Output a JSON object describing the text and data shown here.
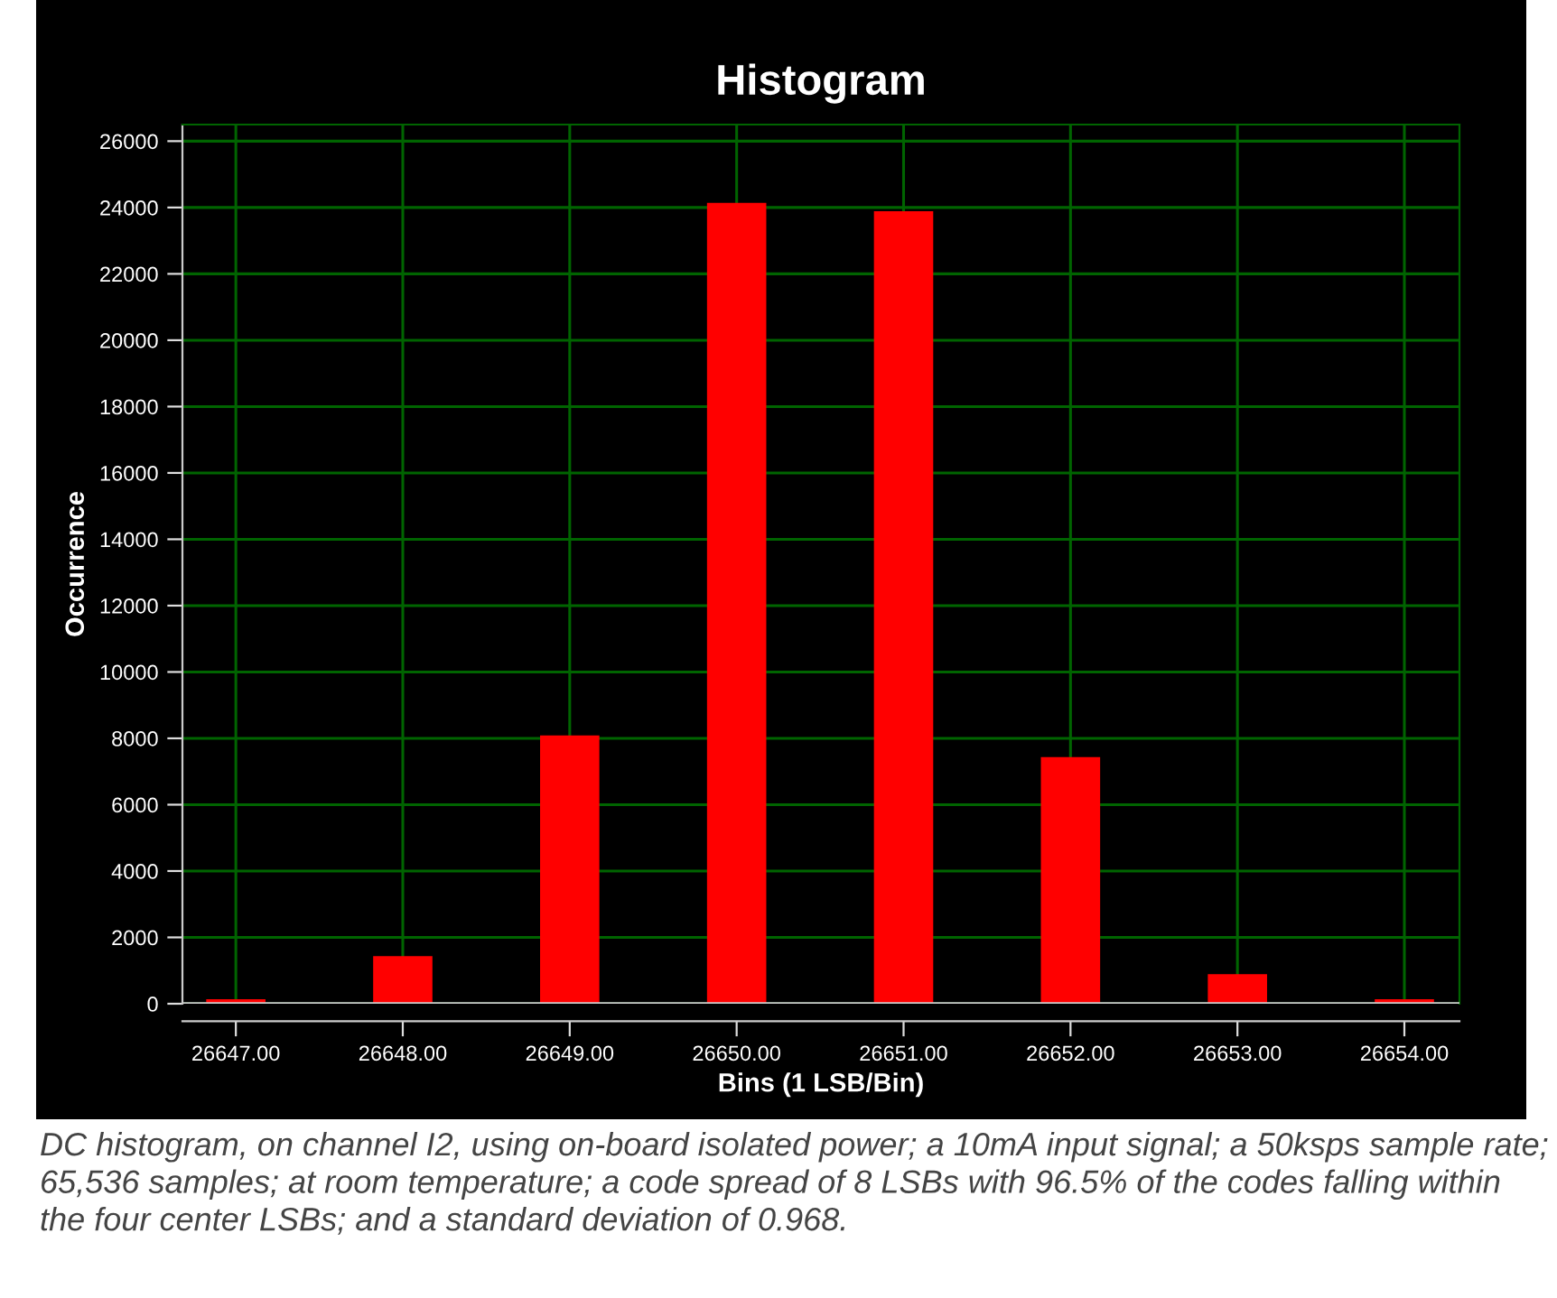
{
  "chart_data": {
    "type": "bar",
    "title": "Histogram",
    "xlabel": "Bins (1 LSB/Bin)",
    "ylabel": "Occurrence",
    "categories": [
      "26647.00",
      "26648.00",
      "26649.00",
      "26650.00",
      "26651.00",
      "26652.00",
      "26653.00",
      "26654.00"
    ],
    "values": [
      100,
      1400,
      8050,
      24100,
      23850,
      7400,
      850,
      100
    ],
    "color": "#ff0000",
    "ylim": [
      0,
      26500
    ],
    "yticks": [
      0,
      2000,
      4000,
      6000,
      8000,
      10000,
      12000,
      14000,
      16000,
      18000,
      20000,
      22000,
      24000,
      26000
    ],
    "grid": true,
    "annotations": [
      "DC histogram, on channel I2, using on-board isolated power; a 10mA input signal; a 50ksps sample rate; 65,536 samples; at room temperature; a code spread of 8 LSBs with 96.5% of the codes falling within the four center LSBs; and a standard deviation of 0.968."
    ]
  }
}
